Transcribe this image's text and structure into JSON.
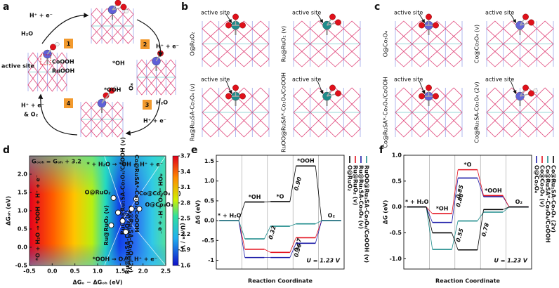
{
  "panel_a": {
    "label": "a",
    "texts": [
      "H⁺ + e⁻",
      "H₂O",
      "*OH",
      "H⁺ + e⁻",
      "*O",
      "H₂O",
      "H⁺ + e⁻",
      "*OOH",
      "H⁺ + e⁻",
      "& O₂",
      "active site",
      "CoOOH",
      "RuOOH"
    ],
    "steps": [
      "1",
      "2",
      "3",
      "4"
    ]
  },
  "panel_b": {
    "label": "b",
    "structures": [
      "O@RuO₂",
      "Ru@RuO₂ (v)",
      "Ru@Ru₁SA-Co₃O₄ (v)",
      "RuOO@RuSA*-Co₃O₄/CoOOH"
    ],
    "active_site": [
      "active site",
      "active site",
      "active site",
      "active site"
    ]
  },
  "panel_c": {
    "label": "c",
    "structures": [
      "O@Co₃O₄",
      "Co@Co₃O₄ (v)",
      "Co@RuSA*-Co₃O₄/CoOOH",
      "Co@Ru₁SA-Co₃O₄ (2v)"
    ],
    "active_site": [
      "active site",
      "active site",
      "active site",
      "active site"
    ]
  },
  "chart_data": [
    {
      "type": "heatmap",
      "label": "d",
      "xlabel": "ΔGₒ − ΔGₒₕ (eV)",
      "ylabel": "ΔGₒₕ (eV)",
      "xlim": [
        -0.5,
        2.5
      ],
      "ylim": [
        -0.5,
        2.5
      ],
      "xticks": [
        -0.5,
        {
          "value": 0,
          "label": "0.0"
        },
        0.5,
        {
          "value": 1,
          "label": "1.0"
        },
        1.5,
        {
          "value": 2,
          "label": "2.0"
        },
        2.5
      ],
      "yticks": [
        -0.5,
        {
          "value": 0,
          "label": "0.0"
        },
        0.5,
        {
          "value": 1,
          "label": "1.0"
        },
        1.5,
        {
          "value": 2,
          "label": "2.0"
        }
      ],
      "annotations": [
        "Gₒₒₕ = Gₒₕ + 3.2",
        "*O + H₂O → *OOH + H⁺ + e⁻",
        "*OH → *O + H⁺ + e⁻",
        "* + H₂O → *OH + H⁺ + e⁻",
        "*OOH → O₂ + H⁺ + e⁻"
      ],
      "colorbar": {
        "label": "(Uₗᴼᴱᴿ / V)",
        "lim": [
          1.6,
          3.7
        ],
        "ticks": [
          1.6,
          1.9,
          2.2,
          2.5,
          2.8,
          3.1,
          3.4,
          3.7
        ]
      },
      "points": {
        "labels": [
          "O@RuO₂",
          "Co@Co₃O₄ (v)",
          "Ru@RuO₂ (v)",
          "RuOO@Ru₁SA-Co₃O₄/CoOOH (v)",
          "Ru@Ru₁SA-Co₃O₄ (v)",
          "Co@Ru₁SA-Co₃O₄ (2v)",
          "Co@RuSA*-Co₃O₄/CoOOH",
          "O@Co₃O₄"
        ],
        "x": [
          1.35,
          1.85,
          1.3,
          1.45,
          1.55,
          1.62,
          1.75,
          1.92
        ],
        "values": [
          1.35,
          1.32,
          0.6,
          0.95,
          0.72,
          0.42,
          1.05,
          1.05
        ]
      }
    },
    {
      "type": "step",
      "label": "e",
      "xlabel": "Reaction Coordinate",
      "ylabel": "ΔG (eV)",
      "categories": [
        "* + H₂O",
        "*OH",
        "*O",
        "*OOH",
        "O₂"
      ],
      "ylim": [
        -1.22,
        1.65
      ],
      "yticks": [
        -1,
        -0.5,
        {
          "value": 0,
          "label": "0.0"
        },
        0.5,
        {
          "value": 1,
          "label": "1.0"
        },
        1.5
      ],
      "annotation": "U = 1.23 V",
      "series": [
        {
          "name": "O@RuO₂",
          "color": "#000000",
          "values": [
            0,
            0.47,
            0.48,
            1.38,
            0
          ],
          "step_labels": [
            null,
            null,
            null,
            "0.90",
            null
          ]
        },
        {
          "name": "Ru@RuO₂ (v)",
          "color": "#e3121f",
          "values": [
            0,
            -0.72,
            -0.8,
            -0.43,
            0
          ],
          "step_labels": [
            null,
            null,
            null,
            "0.37",
            null
          ]
        },
        {
          "name": "Ru@Ru₁SA-Co₃O₄ (v)",
          "color": "#1c1ca8",
          "values": [
            0,
            -0.93,
            -0.93,
            -0.57,
            0
          ],
          "step_labels": [
            null,
            null,
            null,
            "0.36",
            null
          ]
        },
        {
          "name": "RuOO@Ru₁SA-Co₃O₄/CoOOH (v)",
          "color": "#1f8c8c",
          "values": [
            0,
            -0.46,
            -0.14,
            -0.08,
            0
          ],
          "step_labels": [
            null,
            null,
            "0.32",
            null,
            null
          ]
        }
      ]
    },
    {
      "type": "step",
      "label": "f",
      "xlabel": "Reaction Coordinate",
      "ylabel": "ΔG (eV)",
      "categories": [
        "* + H₂O",
        "*OH",
        "*O",
        "*OOH",
        "O₂"
      ],
      "ylim": [
        -1.2,
        1.0
      ],
      "yticks": [
        {
          "value": -1,
          "label": "-1.0"
        },
        -0.5,
        {
          "value": 0,
          "label": "0.0"
        },
        0.5,
        {
          "value": 1,
          "label": "1.0"
        }
      ],
      "annotation": "U = 1.23 V",
      "series": [
        {
          "name": "O@Co₃O₄",
          "color": "#1c1ca8",
          "values": [
            0,
            -0.3,
            0.56,
            0.2,
            0
          ],
          "step_labels": [
            null,
            null,
            "0.86",
            null,
            null
          ]
        },
        {
          "name": "Co@Co₃O₄ (v)",
          "color": "#e3121f",
          "values": [
            0,
            -0.13,
            0.72,
            0.22,
            0
          ],
          "step_labels": [
            null,
            null,
            "0.85",
            null,
            null
          ]
        },
        {
          "name": "Co@RuSA*-Co₃O₄/CoOOH",
          "color": "#1f8c8c",
          "values": [
            0,
            -0.82,
            -0.27,
            -0.1,
            0
          ],
          "step_labels": [
            null,
            null,
            "0.55",
            null,
            null
          ]
        },
        {
          "name": "Co@Ru₁SA-Co₃O₄ (2v)",
          "color": "#000000",
          "values": [
            0,
            -0.5,
            -0.83,
            -0.05,
            0
          ],
          "step_labels": [
            null,
            null,
            null,
            "0.78",
            null
          ]
        }
      ]
    }
  ]
}
